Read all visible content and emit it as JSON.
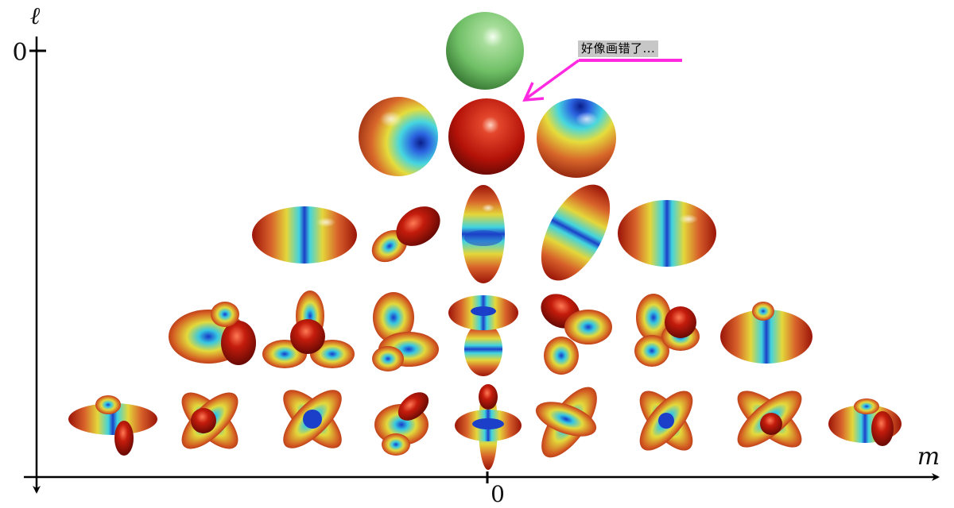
{
  "axes": {
    "y_label": "ℓ",
    "x_label": "m",
    "y_zero": "0",
    "x_zero": "0"
  },
  "annotation": {
    "text": "好像画错了...",
    "color": "#ff29e0"
  },
  "palette": {
    "green": "#6fc06a",
    "red": "#b40f0a",
    "yellow": "#e4d23a",
    "cyan": "#3fd6e0",
    "blue": "#1b3fc8"
  },
  "rows": [
    {
      "l": 0,
      "items": [
        {
          "m": 0,
          "shape": "green-sphere"
        }
      ]
    },
    {
      "l": 1,
      "items": [
        {
          "m": -1,
          "shape": "sphere-blue-spot-right"
        },
        {
          "m": 0,
          "shape": "sphere-red"
        },
        {
          "m": 1,
          "shape": "sphere-blue-top"
        }
      ]
    },
    {
      "l": 2,
      "items": [
        {
          "m": -2,
          "shape": "horizontal-dumbbell"
        },
        {
          "m": -1,
          "shape": "diagonal-lobes"
        },
        {
          "m": 0,
          "shape": "vertical-dumbbell"
        },
        {
          "m": 1,
          "shape": "diagonal-lobes-right"
        },
        {
          "m": 2,
          "shape": "horizontal-dumbbell"
        }
      ]
    },
    {
      "l": 3,
      "items": [
        {
          "m": -3,
          "shape": "three-lobe"
        },
        {
          "m": -2,
          "shape": "tetrahedral"
        },
        {
          "m": -1,
          "shape": "twisted-lobes"
        },
        {
          "m": 0,
          "shape": "torus-lobe"
        },
        {
          "m": 1,
          "shape": "twisted-lobes-right"
        },
        {
          "m": 2,
          "shape": "tetrahedral-right"
        },
        {
          "m": 3,
          "shape": "three-lobe"
        }
      ]
    },
    {
      "l": 4,
      "items": [
        {
          "m": -4,
          "shape": "clover"
        },
        {
          "m": -3,
          "shape": "four-petal"
        },
        {
          "m": -2,
          "shape": "four-petal"
        },
        {
          "m": -1,
          "shape": "tilted-lobes"
        },
        {
          "m": 0,
          "shape": "double-torus"
        },
        {
          "m": 1,
          "shape": "tilted-lobes-right"
        },
        {
          "m": 2,
          "shape": "four-petal"
        },
        {
          "m": 3,
          "shape": "four-petal"
        },
        {
          "m": 4,
          "shape": "clover"
        }
      ]
    }
  ]
}
